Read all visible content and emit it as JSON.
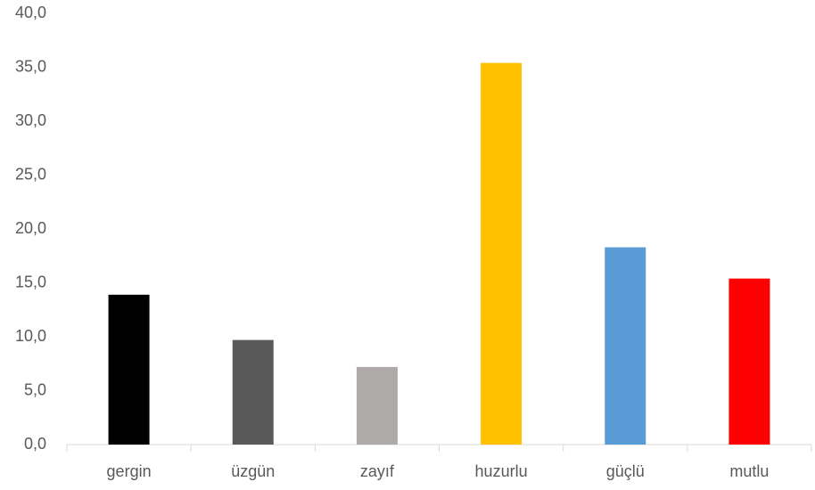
{
  "chart_data": {
    "type": "bar",
    "categories": [
      "gergin",
      "üzgün",
      "zayıf",
      "huzurlu",
      "güçlü",
      "mutlu"
    ],
    "values": [
      13.9,
      9.7,
      7.2,
      35.4,
      18.3,
      15.4
    ],
    "colors": [
      "#000000",
      "#595959",
      "#aeaaaa",
      "#ffc000",
      "#5b9bd5",
      "#ff0000"
    ],
    "ylim": [
      0,
      40
    ],
    "yticks": [
      {
        "value": 0,
        "label": "0,0"
      },
      {
        "value": 5,
        "label": "5,0"
      },
      {
        "value": 10,
        "label": "10,0"
      },
      {
        "value": 15,
        "label": "15,0"
      },
      {
        "value": 20,
        "label": "20,0"
      },
      {
        "value": 25,
        "label": "25,0"
      },
      {
        "value": 30,
        "label": "30,0"
      },
      {
        "value": 35,
        "label": "35,0"
      },
      {
        "value": 40,
        "label": "40,0"
      }
    ],
    "grid": false
  }
}
